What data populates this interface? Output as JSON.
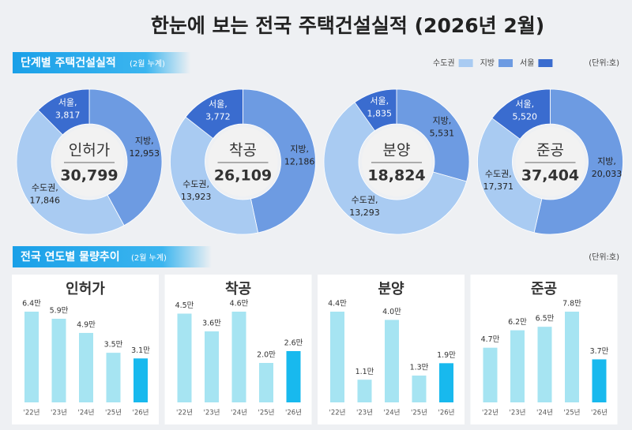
{
  "title": "한눈에 보는 전국 주택건설실적 (2026년 2월)",
  "section1": {
    "title": "단계별 주택건설실적",
    "note": "(2월 누계)",
    "unit": "(단위:호)",
    "legend": [
      {
        "name": "수도권",
        "color": "#a9cbf2"
      },
      {
        "name": "지방",
        "color": "#6d9be2"
      },
      {
        "name": "서울",
        "color": "#3a6ccf"
      }
    ]
  },
  "section2": {
    "title": "전국 연도별 물량추이",
    "note": "(2월 누계)",
    "unit": "(단위:호)"
  },
  "chart_data": [
    {
      "type": "donut",
      "center_label": "인허가",
      "total": 30799,
      "total_label": "30,799",
      "categories": [
        "수도권,",
        "지방,",
        "서울,"
      ],
      "values": [
        17846,
        12953,
        3817
      ],
      "value_labels": [
        "17,846",
        "12,953",
        "3,817"
      ],
      "colors": [
        "#a9cbf2",
        "#6d9be2",
        "#3a6ccf"
      ]
    },
    {
      "type": "donut",
      "center_label": "착공",
      "total": 26109,
      "total_label": "26,109",
      "categories": [
        "수도권,",
        "지방,",
        "서울,"
      ],
      "values": [
        13923,
        12186,
        3772
      ],
      "value_labels": [
        "13,923",
        "12,186",
        "3,772"
      ],
      "colors": [
        "#a9cbf2",
        "#6d9be2",
        "#3a6ccf"
      ]
    },
    {
      "type": "donut",
      "center_label": "분양",
      "total": 18824,
      "total_label": "18,824",
      "categories": [
        "수도권,",
        "지방,",
        "서울,"
      ],
      "values": [
        13293,
        5531,
        1835
      ],
      "value_labels": [
        "13,293",
        "5,531",
        "1,835"
      ],
      "colors": [
        "#a9cbf2",
        "#6d9be2",
        "#3a6ccf"
      ]
    },
    {
      "type": "donut",
      "center_label": "준공",
      "total": 37404,
      "total_label": "37,404",
      "categories": [
        "수도권,",
        "지방,",
        "서울,"
      ],
      "values": [
        17371,
        20033,
        5520
      ],
      "value_labels": [
        "17,371",
        "20,033",
        "5,520"
      ],
      "colors": [
        "#a9cbf2",
        "#6d9be2",
        "#3a6ccf"
      ]
    },
    {
      "type": "bar",
      "title": "인허가",
      "categories": [
        "'22년",
        "'23년",
        "'24년",
        "'25년",
        "'26년"
      ],
      "values": [
        6.4,
        5.9,
        4.9,
        3.5,
        3.1
      ],
      "value_labels": [
        "6.4만",
        "5.9만",
        "4.9만",
        "3.5만",
        "3.1만"
      ],
      "colors": [
        "#a6e4f2",
        "#a6e4f2",
        "#a6e4f2",
        "#a6e4f2",
        "#18b9ee"
      ]
    },
    {
      "type": "bar",
      "title": "착공",
      "categories": [
        "'22년",
        "'23년",
        "'24년",
        "'25년",
        "'26년"
      ],
      "values": [
        4.5,
        3.6,
        4.6,
        2.0,
        2.6
      ],
      "value_labels": [
        "4.5만",
        "3.6만",
        "4.6만",
        "2.0만",
        "2.6만"
      ],
      "colors": [
        "#a6e4f2",
        "#a6e4f2",
        "#a6e4f2",
        "#a6e4f2",
        "#18b9ee"
      ]
    },
    {
      "type": "bar",
      "title": "분양",
      "categories": [
        "'22년",
        "'23년",
        "'24년",
        "'25년",
        "'26년"
      ],
      "values": [
        4.4,
        1.1,
        4.0,
        1.3,
        1.9
      ],
      "value_labels": [
        "4.4만",
        "1.1만",
        "4.0만",
        "1.3만",
        "1.9만"
      ],
      "colors": [
        "#a6e4f2",
        "#a6e4f2",
        "#a6e4f2",
        "#a6e4f2",
        "#18b9ee"
      ]
    },
    {
      "type": "bar",
      "title": "준공",
      "categories": [
        "'22년",
        "'23년",
        "'24년",
        "'25년",
        "'26년"
      ],
      "values": [
        4.7,
        6.2,
        6.5,
        7.8,
        3.7
      ],
      "value_labels": [
        "4.7만",
        "6.2만",
        "6.5만",
        "7.8만",
        "3.7만"
      ],
      "colors": [
        "#a6e4f2",
        "#a6e4f2",
        "#a6e4f2",
        "#a6e4f2",
        "#18b9ee"
      ]
    }
  ]
}
